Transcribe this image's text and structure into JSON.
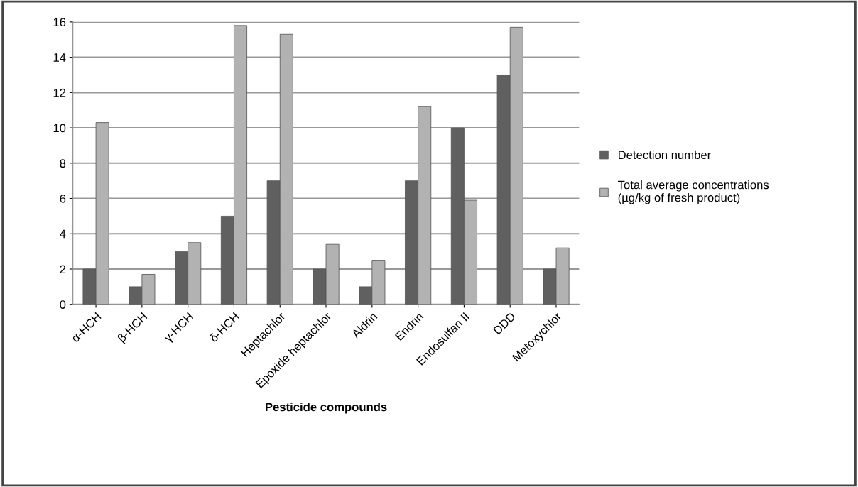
{
  "chart_data": {
    "type": "bar",
    "xlabel": "Pesticide compounds",
    "categories": [
      "α-HCH",
      "β-HCH",
      "γ-HCH",
      "δ-HCH",
      "Heptachlor",
      "Epoxide heptachlor",
      "Aldrin",
      "Endrin",
      "Endosulfan II",
      "DDD",
      "Metoxychlor"
    ],
    "series": [
      {
        "name": "Detection number",
        "color": "#606060",
        "values": [
          2,
          1,
          3,
          5,
          7,
          2,
          1,
          7,
          10,
          13,
          2
        ]
      },
      {
        "name": "Total average concentrations\n(µg/kg of fresh product)",
        "color": "#b2b2b2",
        "values": [
          10.3,
          1.7,
          3.5,
          15.8,
          15.3,
          3.4,
          2.5,
          11.2,
          5.9,
          15.7,
          3.2
        ]
      }
    ],
    "ylim": [
      0,
      16
    ],
    "yticks": [
      0,
      2,
      4,
      6,
      8,
      10,
      12,
      14,
      16
    ],
    "grid": "y",
    "legend": "right"
  }
}
